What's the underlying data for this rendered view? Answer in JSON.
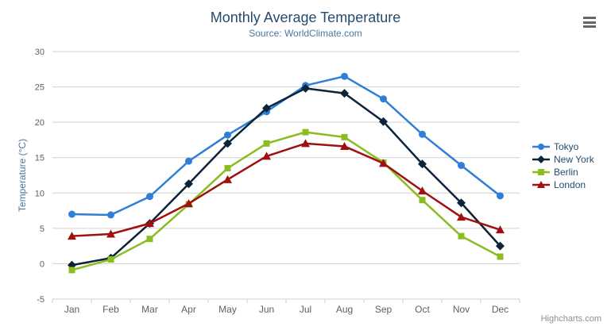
{
  "header": {
    "title": "Monthly Average Temperature",
    "subtitle": "Source: WorldClimate.com"
  },
  "credits": {
    "label": "Highcharts.com"
  },
  "export_menu": {
    "icon": "hamburger-icon"
  },
  "chart_data": {
    "type": "line",
    "title": "Monthly Average Temperature",
    "subtitle": "Source: WorldClimate.com",
    "xlabel": "",
    "ylabel": "Temperature (°C)",
    "categories": [
      "Jan",
      "Feb",
      "Mar",
      "Apr",
      "May",
      "Jun",
      "Jul",
      "Aug",
      "Sep",
      "Oct",
      "Nov",
      "Dec"
    ],
    "series": [
      {
        "name": "Tokyo",
        "color": "#2f7ed8",
        "marker": "circle",
        "values": [
          7.0,
          6.9,
          9.5,
          14.5,
          18.2,
          21.5,
          25.2,
          26.5,
          23.3,
          18.3,
          13.9,
          9.6
        ]
      },
      {
        "name": "New York",
        "color": "#0d233a",
        "marker": "diamond",
        "values": [
          -0.2,
          0.8,
          5.7,
          11.3,
          17.0,
          22.0,
          24.8,
          24.1,
          20.1,
          14.1,
          8.6,
          2.5
        ]
      },
      {
        "name": "Berlin",
        "color": "#8bbc21",
        "marker": "square",
        "values": [
          -0.9,
          0.6,
          3.5,
          8.4,
          13.5,
          17.0,
          18.6,
          17.9,
          14.3,
          9.0,
          3.9,
          1.0
        ]
      },
      {
        "name": "London",
        "color": "#a01010",
        "marker": "triangle",
        "values": [
          3.9,
          4.2,
          5.7,
          8.5,
          11.9,
          15.2,
          17.0,
          16.6,
          14.2,
          10.3,
          6.6,
          4.8
        ]
      }
    ],
    "ylim": [
      -5,
      30
    ],
    "yticks": [
      -5,
      0,
      5,
      10,
      15,
      20,
      25,
      30
    ],
    "grid": true,
    "legend_position": "right",
    "colors": {
      "grid_line": "#d0d0d0",
      "x_axis_line": "#c0d0e0",
      "axis_label": "#606060",
      "title_text": "#274b6d",
      "subtitle_text": "#4d759e",
      "legend_text": "#274b6d"
    }
  }
}
